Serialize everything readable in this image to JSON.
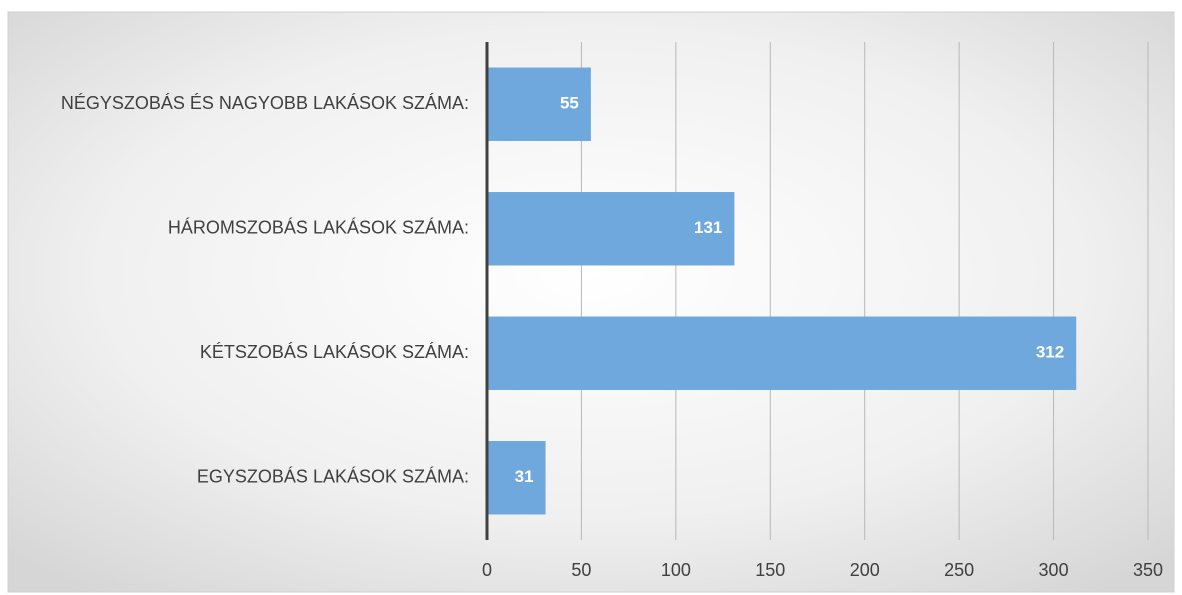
{
  "chart_data": {
    "type": "barh",
    "categories": [
      "NÉGYSZOBÁS ÉS NAGYOBB LAKÁSOK SZÁMA:",
      "HÁROMSZOBÁS LAKÁSOK SZÁMA:",
      "KÉTSZOBÁS LAKÁSOK SZÁMA:",
      "EGYSZOBÁS LAKÁSOK SZÁMA:"
    ],
    "values": [
      55,
      131,
      312,
      31
    ],
    "color": "#6fa8dc",
    "xlim": [
      0,
      350
    ],
    "xticks": [
      0,
      50,
      100,
      150,
      200,
      250,
      300,
      350
    ],
    "grid": true
  }
}
